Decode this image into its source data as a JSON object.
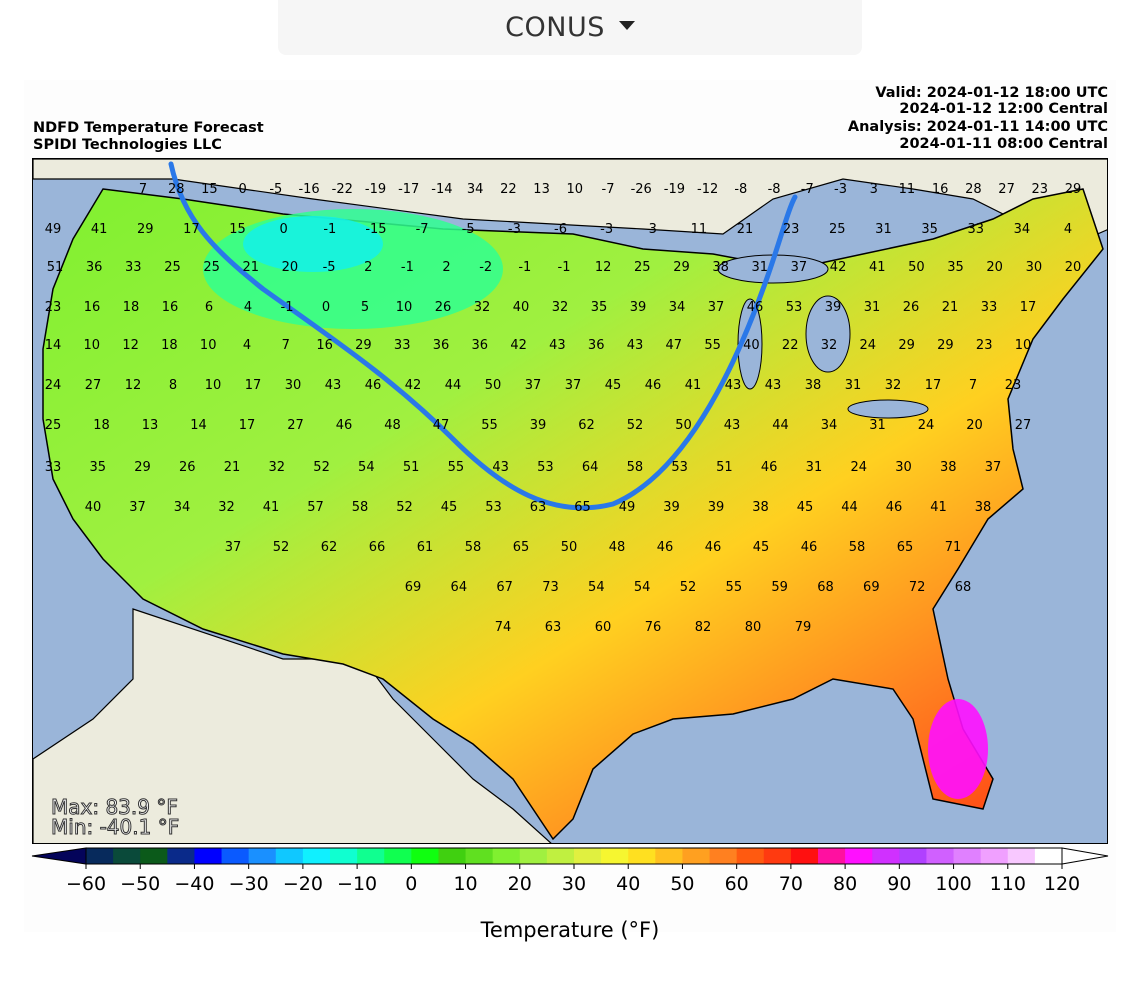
{
  "region_selector": {
    "label": "CONUS"
  },
  "header": {
    "title": "NDFD Temperature Forecast",
    "subtitle": "SPIDI Technologies LLC",
    "valid": "Valid: 2024-01-12 18:00 UTC",
    "valid_central": "2024-01-12 12:00 Central",
    "analysis": "Analysis: 2024-01-11 14:00 UTC",
    "analysis_central": "2024-01-11 08:00 Central"
  },
  "stats": {
    "max": "Max: 83.9 °F",
    "min": "Min: -40.1 °F"
  },
  "colorbar": {
    "label": "Temperature (°F)",
    "ticks": [
      "−60",
      "−50",
      "−40",
      "−30",
      "−20",
      "−10",
      "0",
      "10",
      "20",
      "30",
      "40",
      "50",
      "60",
      "70",
      "80",
      "90",
      "100",
      "110",
      "120"
    ],
    "min": -60,
    "max": 120,
    "step": 5,
    "colors": [
      "#072a5c",
      "#0a4a3a",
      "#0b5a1a",
      "#0a2a8a",
      "#0000ff",
      "#0a5aff",
      "#1a90ff",
      "#10c8ff",
      "#10f0ff",
      "#10ffd0",
      "#10ff90",
      "#10ff50",
      "#10ff10",
      "#40d010",
      "#60e020",
      "#80f030",
      "#a0f040",
      "#c0f040",
      "#e0f040",
      "#f6f630",
      "#ffe020",
      "#ffc020",
      "#ffa020",
      "#ff8020",
      "#ff5a10",
      "#ff3a10",
      "#ff1010",
      "#ff10a0",
      "#ff10ff",
      "#d030ff",
      "#b040ff",
      "#d060ff",
      "#e080ff",
      "#f0a0ff",
      "#f8c8ff",
      "#ffffff"
    ],
    "under_color": "#04045a",
    "over_color": "#ffffff"
  },
  "chart_data": {
    "type": "map",
    "title": "NDFD Temperature Forecast",
    "units": "°F",
    "freezing_line": "32 °F contour",
    "station_values": [
      7,
      28,
      15,
      0,
      -5,
      -16,
      -22,
      -19,
      -17,
      -14,
      34,
      22,
      13,
      10,
      -7,
      -26,
      -19,
      -12,
      -8,
      -8,
      -7,
      -3,
      3,
      11,
      16,
      28,
      27,
      23,
      29,
      49,
      41,
      29,
      17,
      15,
      0,
      -1,
      -15,
      -7,
      -5,
      -3,
      -6,
      -3,
      3,
      11,
      21,
      23,
      25,
      31,
      35,
      33,
      34,
      4,
      51,
      36,
      33,
      25,
      25,
      21,
      20,
      -5,
      2,
      -1,
      2,
      -2,
      -1,
      -1,
      12,
      25,
      29,
      38,
      31,
      37,
      42,
      41,
      50,
      35,
      20,
      30,
      20,
      23,
      16,
      18,
      16,
      6,
      4,
      -1,
      0,
      5,
      10,
      26,
      32,
      40,
      32,
      35,
      39,
      34,
      37,
      46,
      53,
      39,
      31,
      26,
      21,
      33,
      17,
      14,
      10,
      12,
      18,
      10,
      4,
      7,
      16,
      29,
      33,
      36,
      36,
      42,
      43,
      36,
      43,
      47,
      55,
      40,
      22,
      32,
      24,
      29,
      29,
      23,
      10,
      24,
      27,
      12,
      8,
      10,
      17,
      30,
      43,
      46,
      42,
      44,
      50,
      37,
      37,
      45,
      46,
      41,
      43,
      43,
      38,
      31,
      32,
      17,
      7,
      23,
      25,
      18,
      13,
      14,
      17,
      27,
      46,
      48,
      47,
      55,
      39,
      62,
      52,
      50,
      43,
      44,
      34,
      31,
      24,
      20,
      27,
      33,
      35,
      29,
      26,
      21,
      32,
      52,
      54,
      51,
      55,
      43,
      53,
      64,
      58,
      53,
      51,
      46,
      31,
      24,
      30,
      38,
      37,
      40,
      37,
      34,
      32,
      41,
      57,
      58,
      52,
      45,
      53,
      63,
      65,
      49,
      39,
      39,
      38,
      45,
      44,
      46,
      41,
      38,
      37,
      52,
      62,
      66,
      61,
      58,
      65,
      50,
      48,
      46,
      46,
      45,
      46,
      58,
      65,
      71,
      69,
      64,
      67,
      73,
      54,
      54,
      52,
      55,
      59,
      68,
      69,
      72,
      68,
      74,
      63,
      60,
      76,
      82,
      80,
      79
    ]
  }
}
